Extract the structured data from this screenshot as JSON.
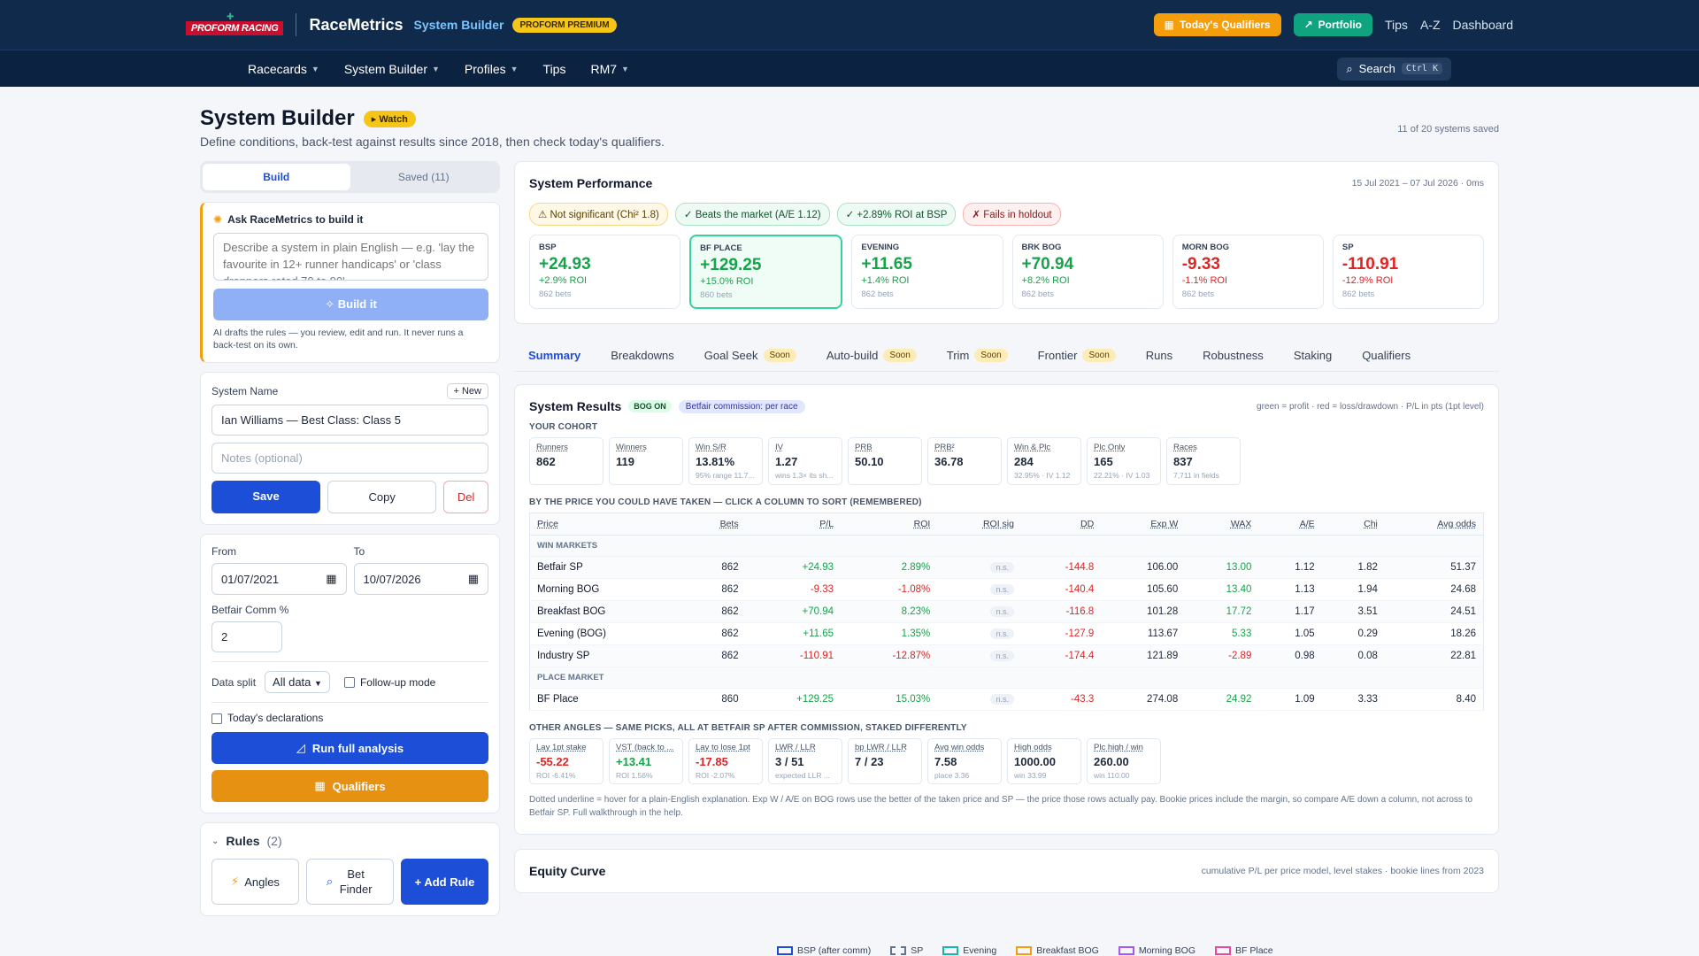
{
  "header": {
    "logo_text": "PROFORM RACING",
    "brand": "RaceMetrics",
    "brand_sub": "System Builder",
    "premium_badge": "PROFORM PREMIUM",
    "todays_qualifiers": "Today's Qualifiers",
    "portfolio": "Portfolio",
    "links": [
      "Tips",
      "A-Z",
      "Dashboard"
    ]
  },
  "nav": {
    "items": [
      {
        "label": "Racecards",
        "dropdown": true
      },
      {
        "label": "System Builder",
        "dropdown": true
      },
      {
        "label": "Profiles",
        "dropdown": true
      },
      {
        "label": "Tips",
        "dropdown": false
      },
      {
        "label": "RM7",
        "dropdown": true
      }
    ],
    "search_label": "Search",
    "search_shortcut": "Ctrl K"
  },
  "page": {
    "title": "System Builder",
    "watch": "Watch",
    "subtitle": "Define conditions, back-test against results since 2018, then check today's qualifiers.",
    "saved_count": "11 of 20 systems saved"
  },
  "left": {
    "tabs": {
      "build": "Build",
      "saved": "Saved",
      "saved_count": "(11)"
    },
    "ai": {
      "title": "Ask RaceMetrics to build it",
      "placeholder": "Describe a system in plain English — e.g. 'lay the favourite in 12+ runner handicaps' or 'class droppers rated 70 to 90'",
      "build_button": "Build it",
      "note": "AI drafts the rules — you review, edit and run. It never runs a back-test on its own."
    },
    "system": {
      "name_label": "System Name",
      "new_button": "+ New",
      "name_value": "Ian Williams — Best Class: Class 5",
      "notes_placeholder": "Notes (optional)",
      "save": "Save",
      "copy": "Copy",
      "del": "Del"
    },
    "settings": {
      "from_label": "From",
      "from_value": "01/07/2021",
      "to_label": "To",
      "to_value": "10/07/2026",
      "comm_label": "Betfair Comm %",
      "comm_value": "2",
      "split_label": "Data split",
      "split_value": "All data",
      "followup_label": "Follow-up mode",
      "declarations_label": "Today's declarations",
      "run_button": "Run full analysis",
      "qualifiers_button": "Qualifiers"
    },
    "rules": {
      "title": "Rules",
      "count": "(2)",
      "angles": "Angles",
      "bet_finder": "Bet Finder",
      "add_rule": "+ Add Rule"
    }
  },
  "performance": {
    "title": "System Performance",
    "date_range": "15 Jul 2021 – 07 Jul 2026 · 0ms",
    "pills": [
      {
        "text": "⚠ Not significant (Chi² 1.8)",
        "tone": "y"
      },
      {
        "text": "✓ Beats the market (A/E 1.12)",
        "tone": "g"
      },
      {
        "text": "✓ +2.89% ROI at BSP",
        "tone": "g"
      },
      {
        "text": "✗ Fails in holdout",
        "tone": "r"
      }
    ],
    "metrics": [
      {
        "label": "BSP",
        "value": "+24.93",
        "roi": "+2.9% ROI",
        "bets": "862 bets",
        "sign": "pos",
        "highlight": false
      },
      {
        "label": "BF PLACE",
        "value": "+129.25",
        "roi": "+15.0% ROI",
        "bets": "860 bets",
        "sign": "pos",
        "highlight": true
      },
      {
        "label": "EVENING",
        "value": "+11.65",
        "roi": "+1.4% ROI",
        "bets": "862 bets",
        "sign": "pos",
        "highlight": false
      },
      {
        "label": "BRK BOG",
        "value": "+70.94",
        "roi": "+8.2% ROI",
        "bets": "862 bets",
        "sign": "pos",
        "highlight": false
      },
      {
        "label": "MORN BOG",
        "value": "-9.33",
        "roi": "-1.1% ROI",
        "bets": "862 bets",
        "sign": "neg",
        "highlight": false
      },
      {
        "label": "SP",
        "value": "-110.91",
        "roi": "-12.9% ROI",
        "bets": "862 bets",
        "sign": "neg",
        "highlight": false
      }
    ]
  },
  "subtabs": [
    {
      "label": "Summary",
      "active": true,
      "soon": false
    },
    {
      "label": "Breakdowns",
      "active": false,
      "soon": false
    },
    {
      "label": "Goal Seek",
      "active": false,
      "soon": true
    },
    {
      "label": "Auto-build",
      "active": false,
      "soon": true
    },
    {
      "label": "Trim",
      "active": false,
      "soon": true
    },
    {
      "label": "Frontier",
      "active": false,
      "soon": true
    },
    {
      "label": "Runs",
      "active": false,
      "soon": false
    },
    {
      "label": "Robustness",
      "active": false,
      "soon": false
    },
    {
      "label": "Staking",
      "active": false,
      "soon": false
    },
    {
      "label": "Qualifiers",
      "active": false,
      "soon": false
    }
  ],
  "soon_label": "Soon",
  "results": {
    "title": "System Results",
    "bog_badge": "BOG ON",
    "comm_badge": "Betfair commission: per race",
    "legend_note": "green = profit · red = loss/drawdown · P/L in pts (1pt level)",
    "cohort_caption": "YOUR COHORT",
    "cohort": [
      {
        "label": "Runners",
        "value": "862",
        "sub": ""
      },
      {
        "label": "Winners",
        "value": "119",
        "sub": ""
      },
      {
        "label": "Win S/R",
        "value": "13.81%",
        "sub": "95% range 11.7..."
      },
      {
        "label": "IV",
        "value": "1.27",
        "sub": "wins 1.3× its sh..."
      },
      {
        "label": "PRB",
        "value": "50.10",
        "sub": ""
      },
      {
        "label": "PRB²",
        "value": "36.78",
        "sub": ""
      },
      {
        "label": "Win & Plc",
        "value": "284",
        "sub": "32.95% · IV 1.12"
      },
      {
        "label": "Plc Only",
        "value": "165",
        "sub": "22.21% · IV 1.03"
      },
      {
        "label": "Races",
        "value": "837",
        "sub": "7,711 in fields"
      }
    ],
    "price_caption": "BY THE PRICE YOU COULD HAVE TAKEN — CLICK A COLUMN TO SORT (REMEMBERED)",
    "columns": [
      "Price",
      "Bets",
      "P/L",
      "ROI",
      "ROI sig",
      "DD",
      "Exp W",
      "WAX",
      "A/E",
      "Chi",
      "Avg odds"
    ],
    "win_group": "WIN MARKETS",
    "place_group": "PLACE MARKET",
    "win_rows": [
      {
        "price": "Betfair SP",
        "bets": "862",
        "pl": "+24.93",
        "roi": "2.89%",
        "sig": "n.s.",
        "dd": "-144.8",
        "expw": "106.00",
        "wax": "13.00",
        "ae": "1.12",
        "chi": "1.82",
        "odds": "51.37",
        "plc": "pos",
        "waxc": "pos"
      },
      {
        "price": "Morning BOG",
        "bets": "862",
        "pl": "-9.33",
        "roi": "-1.08%",
        "sig": "n.s.",
        "dd": "-140.4",
        "expw": "105.60",
        "wax": "13.40",
        "ae": "1.13",
        "chi": "1.94",
        "odds": "24.68",
        "plc": "neg",
        "waxc": "pos"
      },
      {
        "price": "Breakfast BOG",
        "bets": "862",
        "pl": "+70.94",
        "roi": "8.23%",
        "sig": "n.s.",
        "dd": "-116.8",
        "expw": "101.28",
        "wax": "17.72",
        "ae": "1.17",
        "chi": "3.51",
        "odds": "24.51",
        "plc": "pos",
        "waxc": "pos"
      },
      {
        "price": "Evening (BOG)",
        "bets": "862",
        "pl": "+11.65",
        "roi": "1.35%",
        "sig": "n.s.",
        "dd": "-127.9",
        "expw": "113.67",
        "wax": "5.33",
        "ae": "1.05",
        "chi": "0.29",
        "odds": "18.26",
        "plc": "pos",
        "waxc": "pos"
      },
      {
        "price": "Industry SP",
        "bets": "862",
        "pl": "-110.91",
        "roi": "-12.87%",
        "sig": "n.s.",
        "dd": "-174.4",
        "expw": "121.89",
        "wax": "-2.89",
        "ae": "0.98",
        "chi": "0.08",
        "odds": "22.81",
        "plc": "neg",
        "waxc": "neg"
      }
    ],
    "place_rows": [
      {
        "price": "BF Place",
        "bets": "860",
        "pl": "+129.25",
        "roi": "15.03%",
        "sig": "n.s.",
        "dd": "-43.3",
        "expw": "274.08",
        "wax": "24.92",
        "ae": "1.09",
        "chi": "3.33",
        "odds": "8.40",
        "plc": "pos",
        "waxc": "pos"
      }
    ],
    "angles_caption": "OTHER ANGLES — SAME PICKS, ALL AT BETFAIR SP AFTER COMMISSION, STAKED DIFFERENTLY",
    "angles": [
      {
        "label": "Lay 1pt stake",
        "value": "-55.22",
        "sub": "ROI -6.41%",
        "sign": "neg"
      },
      {
        "label": "VST (back to ...",
        "value": "+13.41",
        "sub": "ROI 1.56%",
        "sign": "pos"
      },
      {
        "label": "Lay to lose 1pt",
        "value": "-17.85",
        "sub": "ROI -2.07%",
        "sign": "neg"
      },
      {
        "label": "LWR / LLR",
        "value": "3 / 51",
        "sub": "expected LLR ...",
        "sign": ""
      },
      {
        "label": "bp LWR / LLR",
        "value": "7 / 23",
        "sub": "",
        "sign": ""
      },
      {
        "label": "Avg win odds",
        "value": "7.58",
        "sub": "place 3.36",
        "sign": ""
      },
      {
        "label": "High odds",
        "value": "1000.00",
        "sub": "win 33.99",
        "sign": ""
      },
      {
        "label": "Plc high / win",
        "value": "260.00",
        "sub": "win 110.00",
        "sign": ""
      }
    ],
    "footnote": "Dotted underline = hover for a plain-English explanation. Exp W / A/E on BOG rows use the better of the taken price and SP — the price those rows actually pay. Bookie prices include the margin, so compare A/E down a column, not across to Betfair SP. Full walkthrough in the help."
  },
  "equity": {
    "title": "Equity Curve",
    "note": "cumulative P/L per price model, level stakes · bookie lines from 2023",
    "legend": [
      {
        "label": "BSP (after comm)",
        "color": "#1d4ed8",
        "dashed": false
      },
      {
        "label": "SP",
        "color": "#64748b",
        "dashed": true
      },
      {
        "label": "Evening",
        "color": "#14b8a6",
        "dashed": false
      },
      {
        "label": "Breakfast BOG",
        "color": "#f59e0b",
        "dashed": false
      },
      {
        "label": "Morning BOG",
        "color": "#a855f7",
        "dashed": false
      },
      {
        "label": "BF Place",
        "color": "#ec4899",
        "dashed": false
      }
    ]
  }
}
